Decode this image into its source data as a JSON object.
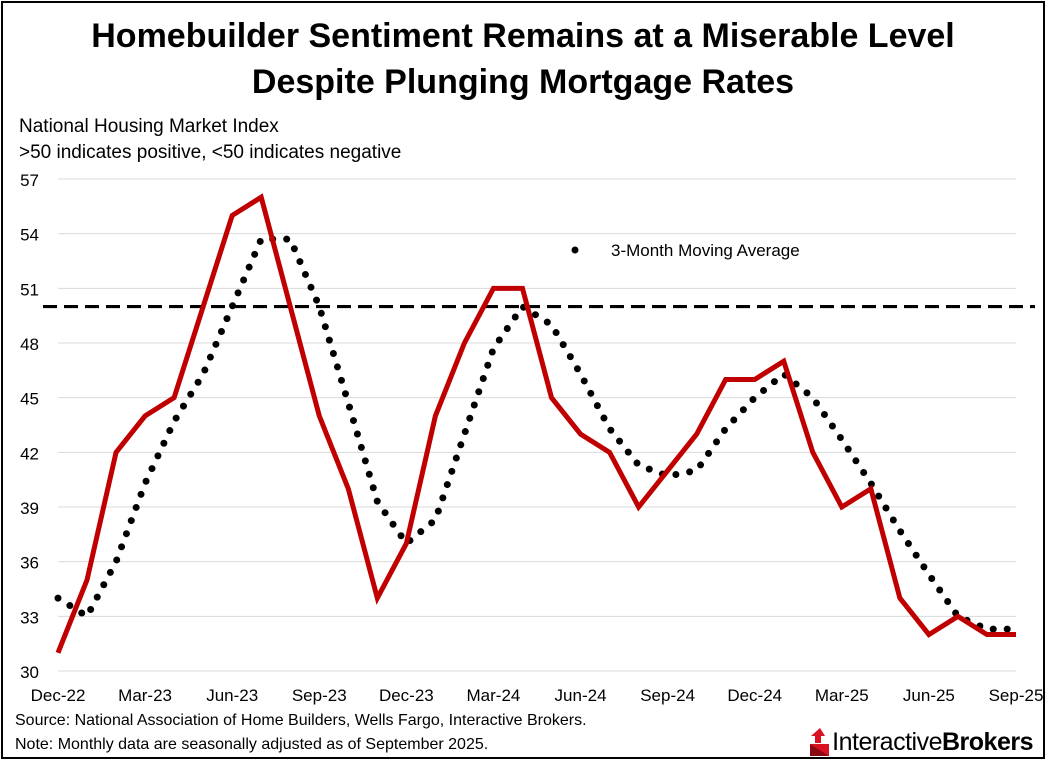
{
  "title_line1": "Homebuilder Sentiment Remains at a Miserable Level",
  "title_line2": "Despite Plunging Mortgage Rates",
  "subtitle_line1": "National Housing Market Index",
  "subtitle_line2": ">50 indicates positive, <50 indicates negative",
  "footer_source": "Source: National Association of Home Builders, Wells Fargo, Interactive Brokers.",
  "footer_note": "Note: Monthly data are seasonally adjusted as of September 2025.",
  "logo": {
    "part1": "Interactive",
    "part2": "Brokers",
    "icon": "interactive-brokers-logo-icon"
  },
  "colors": {
    "index_line": "#c00000",
    "moving_average": "#000000",
    "threshold_line": "#000000"
  },
  "chart_data": {
    "type": "line",
    "x": [
      "Dec-22",
      "Jan-23",
      "Feb-23",
      "Mar-23",
      "Apr-23",
      "May-23",
      "Jun-23",
      "Jul-23",
      "Aug-23",
      "Sep-23",
      "Oct-23",
      "Nov-23",
      "Dec-23",
      "Jan-24",
      "Feb-24",
      "Mar-24",
      "Apr-24",
      "May-24",
      "Jun-24",
      "Jul-24",
      "Aug-24",
      "Sep-24",
      "Oct-24",
      "Nov-24",
      "Dec-24",
      "Jan-25",
      "Feb-25",
      "Mar-25",
      "Apr-25",
      "May-25",
      "Jun-25",
      "Jul-25",
      "Aug-25",
      "Sep-25"
    ],
    "x_tick_labels": [
      "Dec-22",
      "Mar-23",
      "Jun-23",
      "Sep-23",
      "Dec-23",
      "Mar-24",
      "Jun-24",
      "Sep-24",
      "Dec-24",
      "Mar-25",
      "Jun-25",
      "Sep-25"
    ],
    "ylim": [
      30,
      57
    ],
    "y_ticks": [
      30,
      33,
      36,
      39,
      42,
      45,
      48,
      51,
      54,
      57
    ],
    "reference_line": 50,
    "grid": "horizontal",
    "legend_placement": "top-center",
    "series": [
      {
        "values": [
          31,
          35,
          42,
          44,
          45,
          50,
          55,
          56,
          50,
          44,
          40,
          34,
          37,
          44,
          48,
          51,
          51,
          45,
          43,
          42,
          39,
          41,
          43,
          46,
          46,
          47,
          42,
          39,
          40,
          34,
          32,
          33,
          32,
          32
        ]
      },
      {
        "name": "3-Month Moving Average",
        "values": [
          34.0,
          33.0,
          36.0,
          40.3,
          43.7,
          46.3,
          50.0,
          53.7,
          53.7,
          50.0,
          44.7,
          39.3,
          37.0,
          38.3,
          43.0,
          47.7,
          50.0,
          49.0,
          46.3,
          43.3,
          41.3,
          40.7,
          41.0,
          43.3,
          45.0,
          46.3,
          45.0,
          42.7,
          40.3,
          37.7,
          35.3,
          33.0,
          32.3,
          32.3
        ]
      }
    ]
  }
}
